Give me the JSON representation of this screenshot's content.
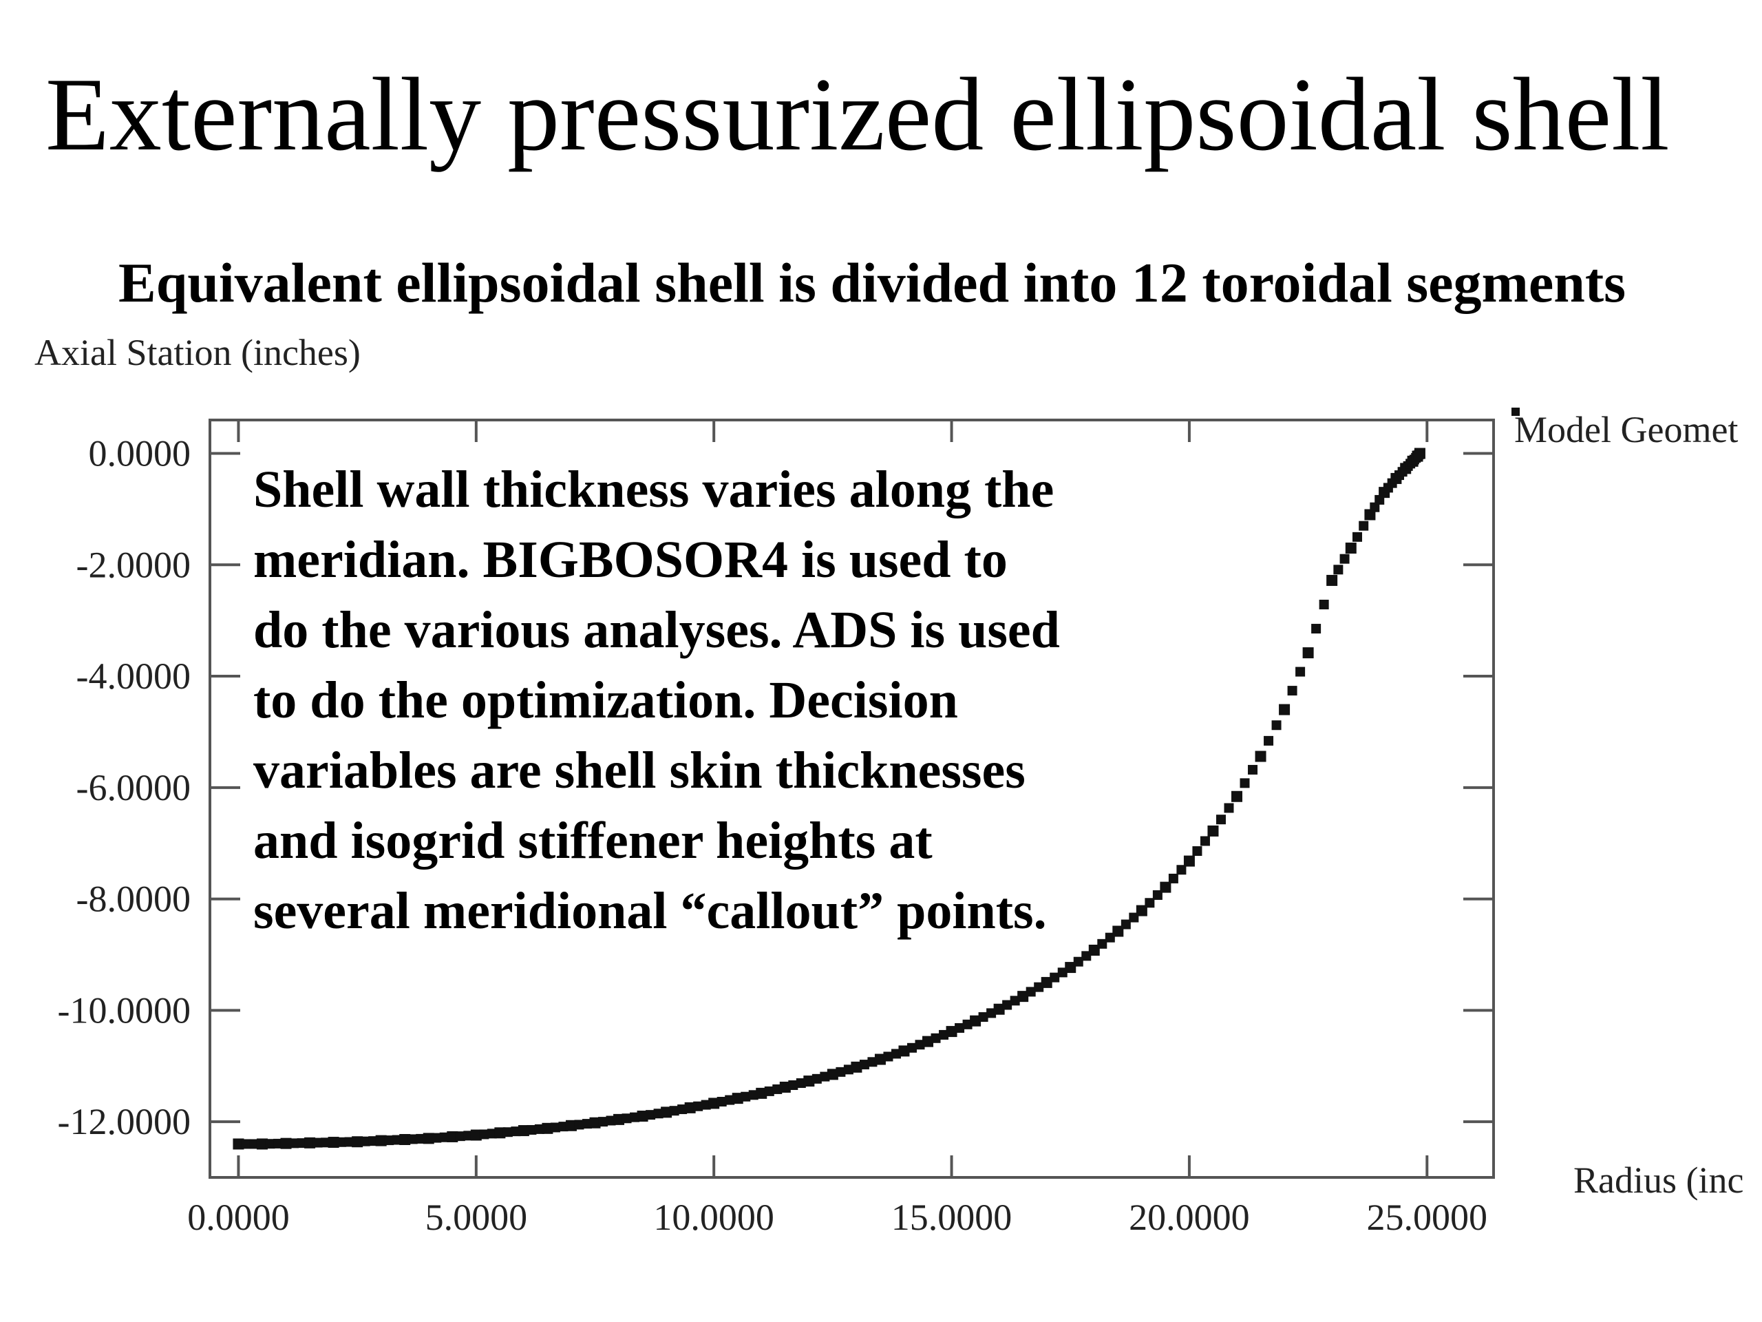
{
  "slide": {
    "title": "Externally pressurized ellipsoidal shell"
  },
  "annotation": {
    "text": "Shell wall thickness varies along the\nmeridian. BIGBOSOR4 is used to\ndo the various analyses. ADS is used\nto do the optimization. Decision\nvariables are shell skin thicknesses\nand isogrid stiffener heights at\nseveral meridional “callout” points."
  },
  "chart_data": {
    "type": "scatter",
    "title": "Equivalent ellipsoidal shell is divided into 12 toroidal segments",
    "ylabel": "Axial Station (inches)",
    "xlabel": "Radius (inc",
    "xlim": [
      -0.6,
      26.4
    ],
    "ylim": [
      -13.0,
      0.6
    ],
    "xticks": [
      0,
      5,
      10,
      15,
      20,
      25
    ],
    "yticks": [
      0,
      -2,
      -4,
      -6,
      -8,
      -10,
      -12
    ],
    "xtick_labels": [
      "0.0000",
      "5.0000",
      "10.0000",
      "15.0000",
      "20.0000",
      "25.0000"
    ],
    "ytick_labels": [
      "0.0000",
      "-2.0000",
      "-4.0000",
      "-6.0000",
      "-8.0000",
      "-10.0000",
      "-12.0000"
    ],
    "grid": false,
    "legend": {
      "position": "top-right",
      "entries": [
        "Model Geomet"
      ]
    },
    "series": [
      {
        "name": "Model Geomet",
        "marker_color": "#111111",
        "x": [
          0.0,
          0.5,
          1.0,
          1.5,
          2.0,
          2.5,
          3.0,
          3.5,
          4.0,
          4.5,
          5.0,
          5.5,
          6.0,
          6.5,
          7.0,
          7.5,
          8.0,
          8.5,
          9.0,
          9.5,
          10.0,
          10.5,
          11.0,
          11.5,
          12.0,
          12.5,
          13.0,
          13.5,
          14.0,
          14.5,
          15.0,
          15.5,
          16.0,
          16.5,
          17.0,
          17.5,
          18.0,
          18.5,
          19.0,
          19.5,
          20.0,
          20.5,
          21.0,
          21.5,
          22.0,
          22.5,
          23.0,
          23.4,
          23.8,
          24.1,
          24.35,
          24.55,
          24.7,
          24.8,
          24.85
        ],
        "y": [
          -12.4,
          -12.4,
          -12.39,
          -12.38,
          -12.37,
          -12.36,
          -12.34,
          -12.32,
          -12.3,
          -12.27,
          -12.24,
          -12.2,
          -12.16,
          -12.12,
          -12.07,
          -12.02,
          -11.96,
          -11.9,
          -11.83,
          -11.75,
          -11.67,
          -11.58,
          -11.49,
          -11.38,
          -11.27,
          -11.15,
          -11.02,
          -10.88,
          -10.73,
          -10.56,
          -10.38,
          -10.19,
          -9.98,
          -9.75,
          -9.5,
          -9.23,
          -8.92,
          -8.58,
          -8.21,
          -7.79,
          -7.32,
          -6.78,
          -6.16,
          -5.44,
          -4.6,
          -3.58,
          -2.28,
          -1.7,
          -1.1,
          -0.7,
          -0.45,
          -0.27,
          -0.14,
          -0.05,
          0.0
        ]
      }
    ]
  }
}
